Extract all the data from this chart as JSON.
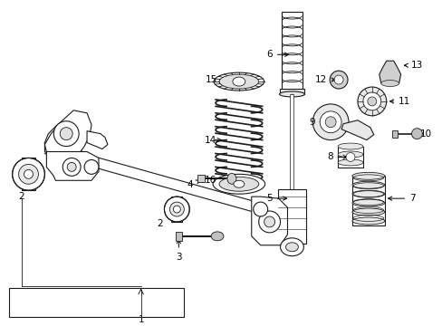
{
  "bg_color": "#ffffff",
  "line_color": "#1a1a1a",
  "label_color": "#000000",
  "fig_width": 4.89,
  "fig_height": 3.6,
  "dpi": 100,
  "lw": 0.8,
  "fontsize": 7.5,
  "xlim": [
    0,
    489
  ],
  "ylim": [
    0,
    360
  ]
}
